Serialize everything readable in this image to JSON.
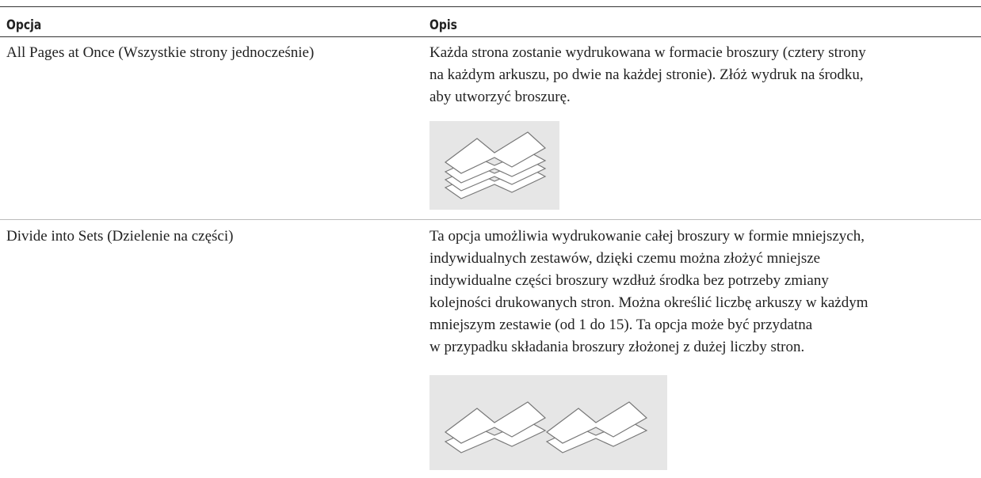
{
  "table": {
    "header": [
      "Opcja",
      "Opis"
    ],
    "rows": [
      {
        "option": "All Pages at Once (Wszystkie strony jednocześnie)",
        "description_lines": [
          "Każda strona zostanie wydrukowana w formacie broszury (cztery strony",
          "na każdym arkuszu, po dwie na każdej stronie). Złóż wydruk na środku,",
          "aby utworzyć broszurę."
        ]
      },
      {
        "option": "Divide into Sets (Dzielenie na części)",
        "description_lines": [
          "Ta opcja umożliwia wydrukowanie całej broszury w formie mniejszych,",
          "indywidualnych zestawów, dzięki czemu można złożyć mniejsze",
          "indywidualne części broszury wzdłuż środka bez potrzeby zmiany",
          "kolejności drukowanych stron. Można określić liczbę arkuszy w każdym",
          "mniejszym zestawie (od 1 do 15). Ta opcja może być przydatna",
          "w przypadku składania broszury złożonej z dużej liczby stron."
        ]
      }
    ]
  }
}
